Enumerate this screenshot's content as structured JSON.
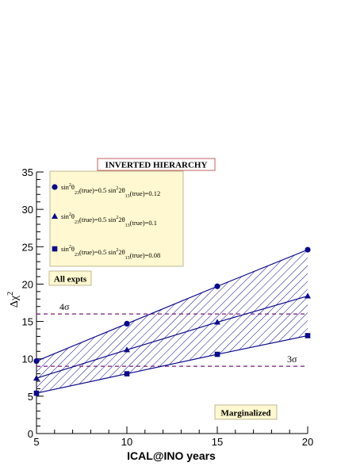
{
  "chart_data": {
    "type": "line",
    "title": "INVERTED HIERARCHY",
    "xlabel": "ICAL@INO years",
    "ylabel_main": "Δχ",
    "ylabel_sup": "2",
    "xlim": [
      5,
      20
    ],
    "ylim": [
      0,
      35
    ],
    "x_ticks": [
      5,
      10,
      15,
      20
    ],
    "y_ticks": [
      0,
      5,
      10,
      15,
      20,
      25,
      30,
      35
    ],
    "x_tick_labels": [
      "5",
      "10",
      "15",
      "20"
    ],
    "y_tick_labels": [
      "0",
      "5",
      "10",
      "15",
      "20",
      "25",
      "30",
      "35"
    ],
    "grid": false,
    "legend_position": "top-left",
    "x": [
      5,
      10,
      15,
      20
    ],
    "series": [
      {
        "marker": "circle",
        "label_parts": [
          "sin",
          "2",
          "θ",
          "23",
          "(true)=0.5   sin",
          "2",
          "2θ",
          "13",
          "(true)=0.12"
        ],
        "values": [
          9.7,
          14.7,
          19.7,
          24.6
        ]
      },
      {
        "marker": "triangle",
        "label_parts": [
          "sin",
          "2",
          "θ",
          "23",
          "(true)=0.5   sin",
          "2",
          "2θ",
          "13",
          "(true)=0.1"
        ],
        "values": [
          7.4,
          11.2,
          14.9,
          18.4
        ]
      },
      {
        "marker": "square",
        "label_parts": [
          "sin",
          "2",
          "θ",
          "23",
          "(true)=0.5   sin",
          "2",
          "2θ",
          "13",
          "(true)=0.08"
        ],
        "values": [
          5.4,
          8.0,
          10.6,
          13.1
        ]
      }
    ],
    "reference_lines": [
      {
        "label": "4σ",
        "y": 16
      },
      {
        "label": "3σ",
        "y": 9
      }
    ],
    "annotations": {
      "all_expts": "All expts",
      "marginalized": "Marginalized"
    },
    "colors": {
      "series": "#0a0a8c",
      "reference": "#7a1a7a",
      "title_border": "#c06060",
      "legend_bg": "#fff8d0",
      "legend_border": "#b0a880",
      "hatch": "#0a0a8c"
    }
  }
}
